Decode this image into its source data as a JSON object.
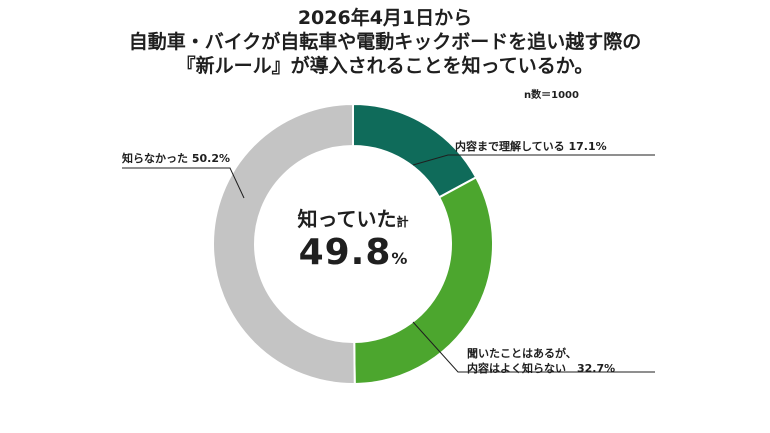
{
  "title_lines": [
    "2026年4月1日から",
    "自動車・バイクが自転車や電動キックボードを追い越す際の",
    "『新ルール』が導入されることを知っているか。"
  ],
  "sample_label": "n数＝1000",
  "center": {
    "line1_main": "知っていた",
    "line1_small": "計",
    "line2_value": "49.8",
    "line2_unit": "%"
  },
  "colors": {
    "dark_green": "#0f6b5a",
    "light_green": "#4ca62e",
    "gray": "#c4c4c4"
  },
  "chart_data": {
    "type": "pie",
    "donut": true,
    "start": "top",
    "direction": "clockwise",
    "slices": [
      {
        "label": "内容まで理解している 17.1%",
        "value": 17.1,
        "color": "#0f6b5a"
      },
      {
        "label_lines": [
          "聞いたことはあるが、",
          "内容はよく知らない　32.7%"
        ],
        "value": 32.7,
        "color": "#4ca62e"
      },
      {
        "label": "知らなかった 50.2%",
        "value": 50.2,
        "color": "#c4c4c4"
      }
    ]
  }
}
